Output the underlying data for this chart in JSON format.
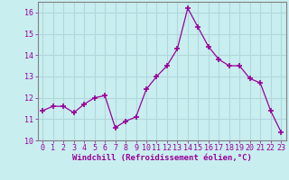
{
  "x": [
    0,
    1,
    2,
    3,
    4,
    5,
    6,
    7,
    8,
    9,
    10,
    11,
    12,
    13,
    14,
    15,
    16,
    17,
    18,
    19,
    20,
    21,
    22,
    23
  ],
  "y": [
    11.4,
    11.6,
    11.6,
    11.3,
    11.7,
    12.0,
    12.1,
    10.6,
    10.9,
    11.1,
    12.4,
    13.0,
    13.5,
    14.3,
    16.2,
    15.3,
    14.4,
    13.8,
    13.5,
    13.5,
    12.9,
    12.7,
    11.4,
    10.4
  ],
  "line_color": "#990099",
  "marker": "+",
  "marker_size": 4,
  "bg_color": "#c8eef0",
  "grid_color": "#b0d8da",
  "xlabel": "Windchill (Refroidissement éolien,°C)",
  "xlim": [
    -0.5,
    23.5
  ],
  "ylim": [
    10.0,
    16.5
  ],
  "yticks": [
    10,
    11,
    12,
    13,
    14,
    15,
    16
  ],
  "xticks": [
    0,
    1,
    2,
    3,
    4,
    5,
    6,
    7,
    8,
    9,
    10,
    11,
    12,
    13,
    14,
    15,
    16,
    17,
    18,
    19,
    20,
    21,
    22,
    23
  ],
  "tick_color": "#990099",
  "label_color": "#990099",
  "spine_color": "#808080",
  "xlabel_fontsize": 6.5,
  "tick_fontsize": 6.0
}
